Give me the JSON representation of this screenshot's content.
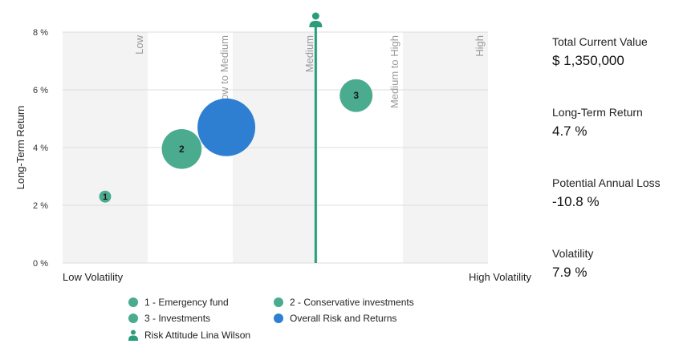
{
  "chart_data": {
    "type": "scatter",
    "ylabel": "Long-Term Return",
    "y_ticks": [
      "0 %",
      "2 %",
      "4 %",
      "6 %",
      "8 %"
    ],
    "ylim": [
      0,
      8
    ],
    "xlim": [
      0,
      10
    ],
    "x_axis_left_label": "Low Volatility",
    "x_axis_right_label": "High Volatility",
    "bands": [
      {
        "label": "Low",
        "from": 0,
        "to": 2,
        "shaded": true
      },
      {
        "label": "Low to Medium",
        "from": 2,
        "to": 4,
        "shaded": false
      },
      {
        "label": "Medium",
        "from": 4,
        "to": 6,
        "shaded": true
      },
      {
        "label": "Medium to High",
        "from": 6,
        "to": 8,
        "shaded": false
      },
      {
        "label": "High",
        "from": 8,
        "to": 10,
        "shaded": true
      }
    ],
    "bubbles": [
      {
        "label": "1",
        "x": 1.0,
        "y": 2.3,
        "size": 0.12,
        "color": "#4aab8e"
      },
      {
        "label": "2",
        "x": 2.8,
        "y": 3.95,
        "size": 0.4,
        "color": "#4aab8e"
      },
      {
        "label": "",
        "x": 3.85,
        "y": 4.7,
        "size": 0.58,
        "color": "#2e7fd1"
      },
      {
        "label": "3",
        "x": 6.9,
        "y": 5.8,
        "size": 0.33,
        "color": "#4aab8e"
      }
    ],
    "risk_attitude_x": 5.95,
    "risk_line_color": "#2a9d7c"
  },
  "legend": [
    {
      "label": "1 - Emergency fund",
      "kind": "dot",
      "color": "#4aab8e"
    },
    {
      "label": "2 - Conservative investments",
      "kind": "dot",
      "color": "#4aab8e"
    },
    {
      "label": "3 - Investments",
      "kind": "dot",
      "color": "#4aab8e"
    },
    {
      "label": "Overall Risk and Returns",
      "kind": "dot",
      "color": "#2e7fd1"
    },
    {
      "label": "Risk Attitude Lina Wilson",
      "kind": "person-icon",
      "color": "#2a9d7c"
    }
  ],
  "stats": [
    {
      "label": "Total Current Value",
      "value": "$ 1,350,000"
    },
    {
      "label": "Long-Term Return",
      "value": "4.7 %"
    },
    {
      "label": "Potential Annual Loss",
      "value": "-10.8 %"
    },
    {
      "label": "Volatility",
      "value": "7.9 %"
    }
  ]
}
